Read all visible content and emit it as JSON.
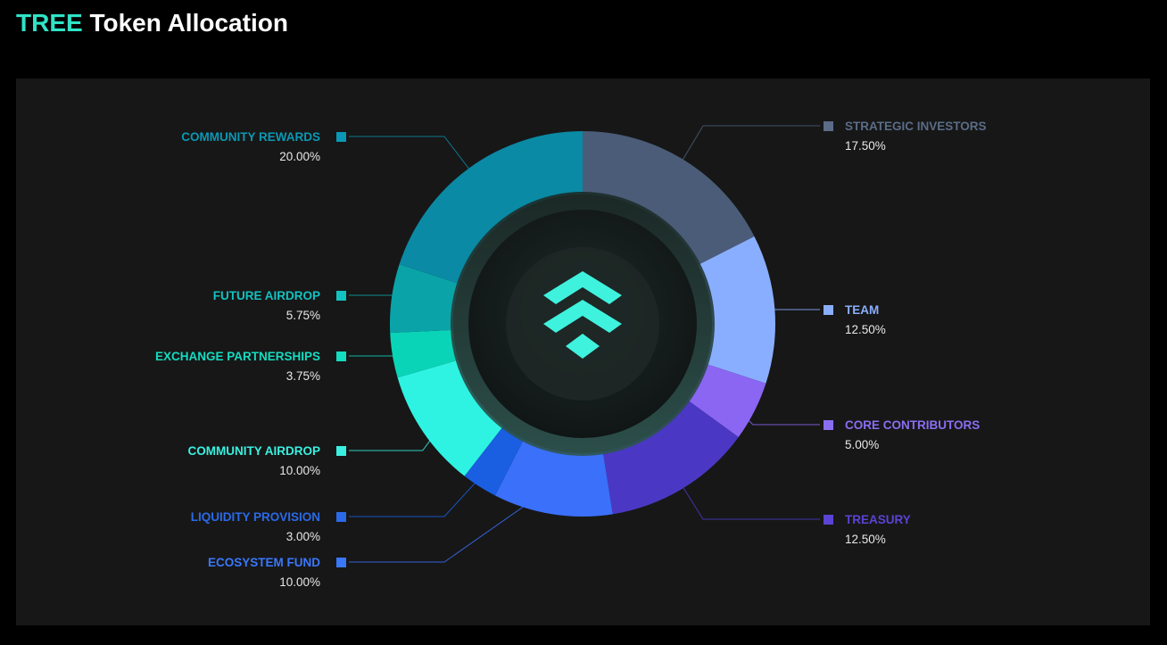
{
  "title": {
    "accent": "TREE",
    "rest": "Token Allocation"
  },
  "center_icon": "tree-logo-icon",
  "chart_data": {
    "type": "pie",
    "subtype": "donut",
    "title": "TREE Token Allocation",
    "units": "%",
    "slices": [
      {
        "label": "STRATEGIC INVESTORS",
        "value_text": "17.50%",
        "value": 17.5,
        "color": "#4a5c78",
        "label_color": "#5a6c88",
        "side": "right"
      },
      {
        "label": "TEAM",
        "value_text": "12.50%",
        "value": 12.5,
        "color": "#8aaeff",
        "label_color": "#8aaeff",
        "side": "right"
      },
      {
        "label": "CORE CONTRIBUTORS",
        "value_text": "5.00%",
        "value": 5.0,
        "color": "#8a66f2",
        "label_color": "#8a6ef2",
        "side": "right"
      },
      {
        "label": "TREASURY",
        "value_text": "12.50%",
        "value": 12.5,
        "color": "#4a38c4",
        "label_color": "#5a44d4",
        "side": "right"
      },
      {
        "label": "ECOSYSTEM FUND",
        "value_text": "10.00%",
        "value": 10.0,
        "color": "#3a70fa",
        "label_color": "#3a78fa",
        "side": "left"
      },
      {
        "label": "LIQUIDITY PROVISION",
        "value_text": "3.00%",
        "value": 3.0,
        "color": "#1a5ee2",
        "label_color": "#2a6ae8",
        "side": "left"
      },
      {
        "label": "COMMUNITY AIRDROP",
        "value_text": "10.00%",
        "value": 10.0,
        "color": "#2ef3e2",
        "label_color": "#3af0e0",
        "side": "left"
      },
      {
        "label": "EXCHANGE PARTNERSHIPS",
        "value_text": "3.75%",
        "value": 3.75,
        "color": "#0ad4b8",
        "label_color": "#14dcc0",
        "side": "left"
      },
      {
        "label": "FUTURE AIRDROP",
        "value_text": "5.75%",
        "value": 5.75,
        "color": "#0aa4a8",
        "label_color": "#12c2c0",
        "side": "left"
      },
      {
        "label": "COMMUNITY REWARDS",
        "value_text": "20.00%",
        "value": 20.0,
        "color": "#0a8aa4",
        "label_color": "#0a98b4",
        "side": "left"
      }
    ]
  }
}
